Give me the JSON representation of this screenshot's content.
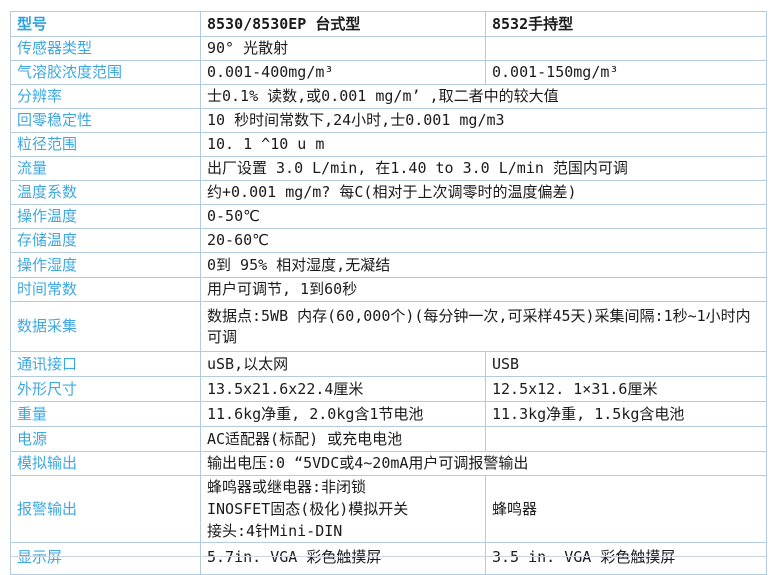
{
  "colors": {
    "label_blue": "#3fa8e0",
    "header_blue": "#2da2dd",
    "value_text": "#1b1b1b",
    "grid_border": "#b3cbdd"
  },
  "table": {
    "rows": [
      {
        "label": "型号",
        "v1": "8530/8530EP 台式型",
        "v2": "8532手持型"
      },
      {
        "label": "传感器类型",
        "v1": "90° 光散射",
        "v2": ""
      },
      {
        "label": "气溶胶浓度范围",
        "v1": "0.001-400mg/m³",
        "v2": "0.001-150mg/m³"
      },
      {
        "label": "分辨率",
        "span": "士0.1% 读数,或0.001 mg/m’ ,取二者中的较大值"
      },
      {
        "label": "回零稳定性",
        "span": "10 秒时间常数下,24小时,士0.001 mg/m3"
      },
      {
        "label": "粒径范围",
        "span": "10. 1 ^10 u m"
      },
      {
        "label": "流量",
        "span": "出厂设置 3.0 L/min,  在1.40 to 3.0 L/min 范国内可调"
      },
      {
        "label": "温度系数",
        "span": "约+0.001 mg/m?  每C(相对于上次调零时的温度偏差)"
      },
      {
        "label": "操作温度",
        "span": "0-50℃"
      },
      {
        "label": "存储温度",
        "span": "20-60℃"
      },
      {
        "label": "操作湿度",
        "span": "0到 95% 相对湿度,无凝结"
      },
      {
        "label": "时间常数",
        "span": "用户可调节, 1到60秒"
      },
      {
        "label": "数据采集",
        "span": "数据点:5WB 内存(60,000个)(每分钟一次,可采样45天)采集间隔:1秒~1小时内可调"
      },
      {
        "label": "通讯接口",
        "v1": "uSB,以太网",
        "v2": "USB"
      },
      {
        "label": "外形尺寸",
        "v1": "13.5x21.6x22.4厘米",
        "v2": "12.5x12. 1×31.6厘米"
      },
      {
        "label": "重量",
        "v1": "11.6kg净重, 2.0kg含1节电池",
        "v2": "11.3kg净重, 1.5kg含电池"
      },
      {
        "label": "电源",
        "v1": "AC适配器(标配) 或充电电池",
        "v2": ""
      },
      {
        "label": "模拟输出",
        "span": "输出电压:0 “5VDC或4~20mA用户可调报警输出"
      },
      {
        "label": "报警输出",
        "lines": [
          "蜂鸣器或继电器:非闭锁",
          "INOSFET固态(极化)模拟开关",
          "接头:4针Mini-DIN"
        ],
        "v2": "蜂鸣器"
      },
      {
        "label": "显示屏",
        "v1": "5.7in. VGA 彩色触摸屏",
        "v2": "3.5 in. VGA 彩色触摸屏"
      }
    ]
  }
}
